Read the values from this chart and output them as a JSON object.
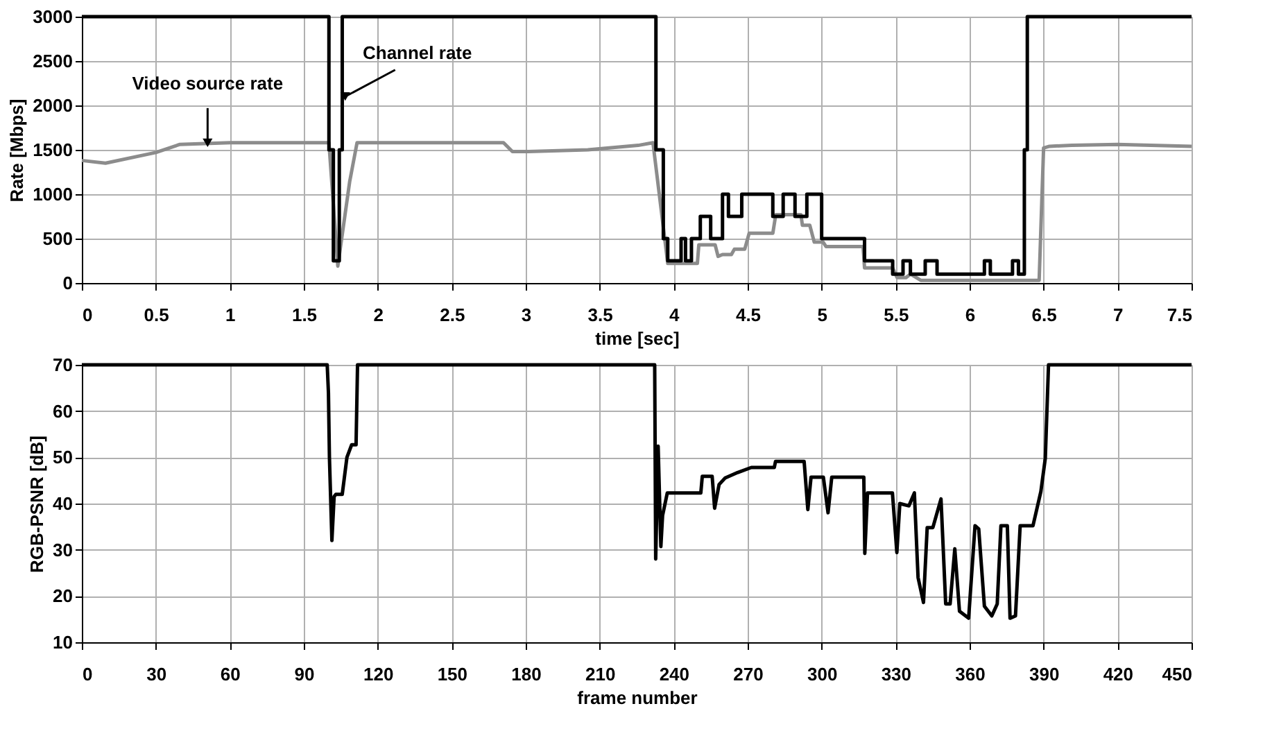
{
  "chart_data": [
    {
      "type": "line",
      "xlabel": "time [sec]",
      "ylabel": "Rate [Mbps]",
      "xlim": [
        0,
        7.5
      ],
      "xticks": [
        0,
        0.5,
        1,
        1.5,
        2,
        2.5,
        3,
        3.5,
        4,
        4.5,
        5,
        5.5,
        6,
        6.5,
        7,
        7.5
      ],
      "ylim": [
        0,
        3000
      ],
      "yticks": [
        0,
        500,
        1000,
        1500,
        2000,
        2500,
        3000
      ],
      "grid": true,
      "line_style": "solid",
      "marker": "none",
      "annotations": [
        {
          "text": "Video source rate",
          "x": 0.85,
          "y": 1580
        },
        {
          "text": "Channel rate",
          "x": 1.78,
          "y": 2100
        }
      ],
      "series": [
        {
          "color": "#8c8c8c",
          "x": [
            0,
            0.16,
            0.5,
            0.66,
            1.0,
            1.5,
            1.67,
            1.73,
            1.81,
            1.86,
            2.3,
            2.85,
            2.91,
            3.01,
            3.42,
            3.76,
            3.86,
            3.96,
            4.16,
            4.17,
            4.28,
            4.3,
            4.33,
            4.39,
            4.41,
            4.48,
            4.51,
            4.67,
            4.69,
            4.86,
            4.87,
            4.92,
            4.95,
            5.01,
            5.03,
            5.28,
            5.29,
            5.48,
            5.51,
            5.57,
            5.6,
            5.67,
            6.0,
            6.32,
            6.47,
            6.5,
            6.54,
            6.69,
            7.0,
            7.5
          ],
          "values": [
            1380,
            1350,
            1470,
            1560,
            1580,
            1580,
            1580,
            190,
            1140,
            1580,
            1580,
            1580,
            1480,
            1480,
            1500,
            1550,
            1580,
            220,
            220,
            430,
            430,
            300,
            320,
            320,
            380,
            380,
            560,
            560,
            770,
            770,
            650,
            650,
            460,
            460,
            410,
            410,
            170,
            170,
            60,
            60,
            100,
            30,
            30,
            30,
            30,
            1520,
            1540,
            1550,
            1560,
            1540
          ]
        },
        {
          "type": "step",
          "color": "#000000",
          "x": [
            0,
            1.67,
            1.7,
            1.74,
            1.76,
            3.88,
            3.93,
            3.96,
            4.05,
            4.08,
            4.12,
            4.18,
            4.25,
            4.33,
            4.37,
            4.46,
            4.53,
            4.67,
            4.74,
            4.82,
            4.9,
            5.0,
            5.29,
            5.48,
            5.55,
            5.6,
            5.7,
            5.78,
            5.85,
            6.1,
            6.14,
            6.29,
            6.33,
            6.37,
            6.39,
            7.5
          ],
          "values": [
            3000,
            1500,
            250,
            1500,
            3000,
            1500,
            500,
            250,
            500,
            250,
            500,
            750,
            500,
            1000,
            750,
            1000,
            1000,
            750,
            1000,
            750,
            1000,
            500,
            250,
            100,
            250,
            100,
            250,
            100,
            100,
            250,
            100,
            250,
            100,
            1500,
            3000,
            3000
          ]
        }
      ]
    },
    {
      "type": "line",
      "xlabel": "frame number",
      "ylabel": "RGB-PSNR [dB]",
      "xlim": [
        0,
        450
      ],
      "xticks": [
        0,
        30,
        60,
        90,
        120,
        150,
        180,
        210,
        240,
        270,
        300,
        330,
        360,
        390,
        420,
        450
      ],
      "ylim": [
        10,
        70
      ],
      "yticks": [
        10,
        20,
        30,
        40,
        50,
        60,
        70
      ],
      "grid": true,
      "line_style": "solid",
      "marker": "none",
      "series": [
        {
          "color": "#000000",
          "x": [
            0,
            99.5,
            100,
            100.4,
            101.4,
            102.3,
            103,
            105.6,
            107.5,
            109.4,
            111.2,
            111.8,
            232.3,
            232.7,
            233.7,
            234.8,
            235.5,
            237.4,
            251,
            251.6,
            255.6,
            256.6,
            258.4,
            260.8,
            265.9,
            271.5,
            280.8,
            281.3,
            292.9,
            294.4,
            295.7,
            300.7,
            302.6,
            304.1,
            317.1,
            317.5,
            318.6,
            328.7,
            330.5,
            331.7,
            335.4,
            337.6,
            339.1,
            341.3,
            342.8,
            345.1,
            348.4,
            350.3,
            352.1,
            354,
            355.9,
            359.6,
            362.2,
            363.7,
            366,
            369,
            371.2,
            372.7,
            375.3,
            376.4,
            378.6,
            380.5,
            385.7,
            388.9,
            390.7,
            392,
            450
          ],
          "values": [
            70,
            70,
            64,
            50,
            32,
            41.5,
            42,
            42,
            50,
            52.7,
            52.7,
            70,
            70,
            28,
            52.4,
            30.7,
            37.4,
            42.3,
            42.3,
            45.9,
            45.9,
            39,
            44.1,
            45.5,
            46.7,
            47.8,
            47.8,
            49.1,
            49.1,
            38.7,
            45.7,
            45.7,
            38,
            45.7,
            45.7,
            29.2,
            42.3,
            42.3,
            29.4,
            40,
            39.5,
            42.3,
            24,
            18.6,
            34.8,
            34.8,
            41,
            18.3,
            18.3,
            30.2,
            16.7,
            15.2,
            35.2,
            34.5,
            17.8,
            15.7,
            18.3,
            35.2,
            35.2,
            15.2,
            15.7,
            35.2,
            35.2,
            42.6,
            49.8,
            70,
            70
          ]
        }
      ]
    }
  ]
}
